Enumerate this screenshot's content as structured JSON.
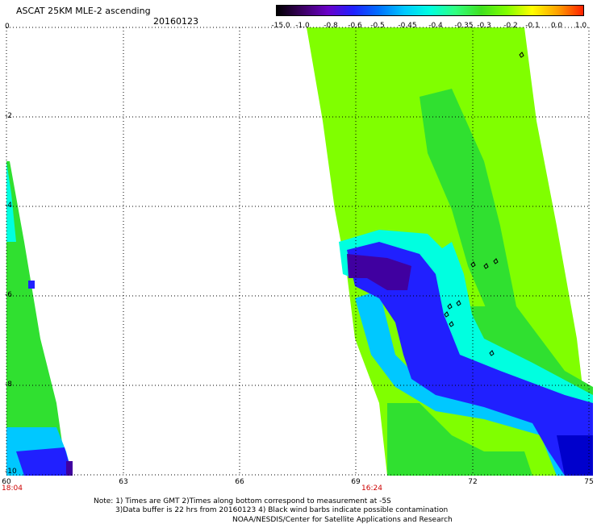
{
  "header": {
    "title": "ASCAT 25KM MLE-2 ascending",
    "date": "20160123"
  },
  "colorbar": {
    "labels": [
      "-15.0",
      "-1.0",
      "-0.8",
      "-0.6",
      "-0.5",
      "-0.45",
      "-0.4",
      "-0.35",
      "-0.3",
      "-0.2",
      "-0.1",
      "0.0",
      "1.0"
    ],
    "colors": [
      "#000000",
      "#3a0060",
      "#6a00c8",
      "#2020ff",
      "#0070ff",
      "#00c8ff",
      "#00ffe0",
      "#30ff80",
      "#40e020",
      "#80ff00",
      "#ffff00",
      "#ffa000",
      "#ff2000"
    ]
  },
  "axes": {
    "y_labels": [
      "0",
      "-2",
      "-4",
      "-6",
      "-8",
      "-10"
    ],
    "x_labels": [
      "60",
      "63",
      "66",
      "69",
      "72",
      "75"
    ],
    "time_labels": [
      "18:04",
      "16:24"
    ]
  },
  "notes": {
    "line1": "Note: 1) Times are GMT 2)Times along bottom correspond to measurement at -5S",
    "line2": "3)Data buffer is 22 hrs from 20160123 4) Black wind barbs indicate possible contamination",
    "line3": "NOAA/NESDIS/Center for Satellite Applications and Research"
  },
  "palette": {
    "lime": "#80ff00",
    "green": "#30e030",
    "cyan": "#00ffe0",
    "lightblue": "#00c8ff",
    "blue": "#2020ff",
    "darkblue": "#0000cc",
    "purple": "#4000a0",
    "grid": "#000000",
    "time_red": "#cc0000"
  }
}
